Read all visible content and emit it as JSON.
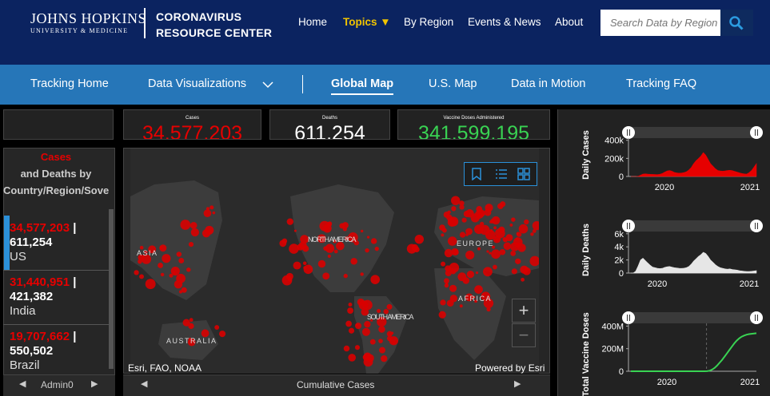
{
  "header": {
    "logo_line1": "JOHNS HOPKINS",
    "logo_line2": "UNIVERSITY & MEDICINE",
    "center_line1": "CORONAVIRUS",
    "center_line2": "RESOURCE CENTER",
    "nav": [
      {
        "label": "Home"
      },
      {
        "label": "Topics ▼"
      },
      {
        "label": "By Region"
      },
      {
        "label": "Events & News"
      },
      {
        "label": "About"
      }
    ],
    "search_placeholder": "Search Data by Region"
  },
  "subnav": {
    "items": [
      "Tracking Home",
      "Data Visualizations",
      "Global Map",
      "U.S. Map",
      "Data in Motion",
      "Tracking FAQ"
    ],
    "active": "Global Map"
  },
  "stats": {
    "cases_label": "Cases",
    "cases_value": "34,577,203",
    "deaths_label": "Deaths",
    "deaths_value": "611,254",
    "vaccine_label": "Vaccine Doses Administered",
    "vaccine_value": "341,599,195"
  },
  "country_list": {
    "head_cases": "Cases",
    "head_rest": "and Deaths by Country/Region/Sovereignty",
    "rows": [
      {
        "cases": "34,577,203",
        "deaths": "611,254",
        "name": "US"
      },
      {
        "cases": "31,440,951",
        "deaths": "421,382",
        "name": "India"
      },
      {
        "cases": "19,707,662",
        "deaths": "550,502",
        "name": "Brazil"
      }
    ],
    "footer": "Admin0"
  },
  "map": {
    "labels": [
      "ASIA",
      "NORTH AMERICA",
      "EUROPE",
      "AFRICA",
      "SOUTH AMERICA",
      "AUSTRALIA"
    ],
    "attribution": "Esri, FAO, NOAA",
    "powered": "Powered by Esri",
    "footer": "Cumulative Cases",
    "zoom_in": "+",
    "zoom_out": "−"
  },
  "colors": {
    "header_bg": "#0b2360",
    "subnav_bg": "#2676b8",
    "cases": "#e60000",
    "vaccine": "#39d353",
    "topics": "#f1c400"
  },
  "chart_data": [
    {
      "type": "area",
      "ylabel": "Daily Cases",
      "y_ticks": [
        "0",
        "200k",
        "400k"
      ],
      "ylim": [
        0,
        450000
      ],
      "x_ticks": [
        "2020",
        "2021"
      ],
      "color": "#e60000",
      "series": [
        {
          "values": [
            0,
            0,
            0,
            2000,
            15000,
            28000,
            30000,
            27000,
            25000,
            24000,
            23000,
            22000,
            25000,
            35000,
            50000,
            65000,
            70000,
            62000,
            48000,
            42000,
            38000,
            40000,
            45000,
            55000,
            75000,
            105000,
            150000,
            185000,
            210000,
            240000,
            280000,
            250000,
            200000,
            150000,
            120000,
            90000,
            70000,
            65000,
            62000,
            65000,
            70000,
            72000,
            68000,
            60000,
            52000,
            42000,
            35000,
            30000,
            28000,
            45000,
            70000,
            110000,
            150000
          ]
        }
      ]
    },
    {
      "type": "area",
      "ylabel": "Daily Deaths",
      "y_ticks": [
        "0",
        "2k",
        "4k",
        "6k"
      ],
      "ylim": [
        0,
        7000
      ],
      "x_ticks": [
        "2020",
        "2021"
      ],
      "color": "#e6e6e6",
      "series": [
        {
          "values": [
            0,
            0,
            300,
            1200,
            2200,
            2500,
            2100,
            1700,
            1300,
            1000,
            900,
            800,
            750,
            800,
            950,
            1050,
            1100,
            1000,
            900,
            850,
            800,
            780,
            820,
            900,
            1100,
            1500,
            2000,
            2400,
            2800,
            3100,
            3500,
            3300,
            2800,
            2200,
            1800,
            1400,
            1100,
            900,
            800,
            700,
            650,
            700,
            600,
            550,
            500,
            400,
            350,
            300,
            250,
            250,
            300,
            350,
            400
          ]
        }
      ]
    },
    {
      "type": "line",
      "ylabel": "Total Vaccine Doses",
      "y_ticks": [
        "0",
        "200M",
        "400M"
      ],
      "ylim": [
        0,
        430000000
      ],
      "x_ticks": [
        "2020",
        "2021"
      ],
      "color": "#39d353",
      "series": [
        {
          "values": [
            0,
            0,
            0,
            0,
            0,
            0,
            0,
            0,
            0,
            0,
            0,
            0,
            0,
            0,
            0,
            0,
            0,
            0,
            0,
            0,
            0,
            0,
            0,
            0,
            0,
            0,
            0,
            0,
            0,
            0,
            0,
            1000000,
            5000000,
            15000000,
            30000000,
            50000000,
            75000000,
            100000000,
            130000000,
            160000000,
            190000000,
            220000000,
            250000000,
            275000000,
            295000000,
            310000000,
            320000000,
            328000000,
            333000000,
            336000000,
            339000000,
            341000000
          ]
        }
      ]
    }
  ]
}
